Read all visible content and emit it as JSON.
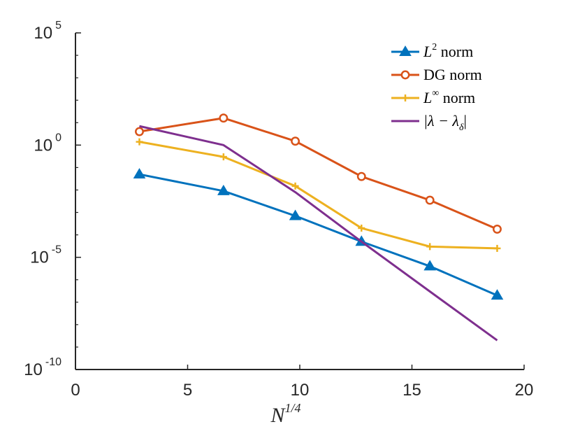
{
  "chart_data": {
    "type": "line",
    "xlabel": {
      "base": "N",
      "sup": "1/4"
    },
    "xlim": [
      0,
      20
    ],
    "ylim_log10": [
      -10,
      5
    ],
    "yscale": "log",
    "x_ticks": [
      {
        "value": 0,
        "label": "0"
      },
      {
        "value": 5,
        "label": "5"
      },
      {
        "value": 10,
        "label": "10"
      },
      {
        "value": 15,
        "label": "15"
      },
      {
        "value": 20,
        "label": "20"
      }
    ],
    "y_ticks": [
      {
        "exp": 5,
        "base": "10",
        "sup": "5"
      },
      {
        "exp": 0,
        "base": "10",
        "sup": "0"
      },
      {
        "exp": -5,
        "base": "10",
        "sup": "-5"
      },
      {
        "exp": -10,
        "base": "10",
        "sup": "-10"
      }
    ],
    "legend_position": "top-right",
    "series": [
      {
        "name": "L2 norm",
        "legend": {
          "pre": "L",
          "sup": "2",
          "post": " norm",
          "italic_pre": true
        },
        "color": "#0072BD",
        "marker": "triangle",
        "x": [
          2.85,
          6.6,
          9.8,
          12.75,
          15.8,
          18.8
        ],
        "y": [
          0.05,
          0.009,
          0.0007,
          5e-05,
          4e-06,
          2e-07
        ]
      },
      {
        "name": "DG norm",
        "legend": {
          "pre": "DG norm",
          "sup": "",
          "post": "",
          "italic_pre": false
        },
        "color": "#D95319",
        "marker": "circle",
        "x": [
          2.85,
          6.6,
          9.8,
          12.75,
          15.8,
          18.8
        ],
        "y": [
          4,
          16,
          1.5,
          0.04,
          0.0035,
          0.00018
        ]
      },
      {
        "name": "L∞ norm",
        "legend": {
          "pre": "L",
          "sup": "∞",
          "post": " norm",
          "italic_pre": true
        },
        "color": "#EDB120",
        "marker": "plus",
        "x": [
          2.85,
          6.6,
          9.8,
          12.75,
          15.8,
          18.8
        ],
        "y": [
          1.4,
          0.3,
          0.015,
          0.0002,
          3e-05,
          2.5e-05
        ]
      },
      {
        "name": "|λ − λδ|",
        "legend": {
          "pre": "|λ − λ",
          "sub": "δ",
          "post": "|",
          "italic_pre": true
        },
        "color": "#7E2F8E",
        "marker": "none",
        "x": [
          2.85,
          6.6,
          9.8,
          12.75,
          15.8,
          18.8
        ],
        "y": [
          7,
          1,
          0.008,
          5e-05,
          3e-07,
          2e-09
        ]
      }
    ]
  }
}
